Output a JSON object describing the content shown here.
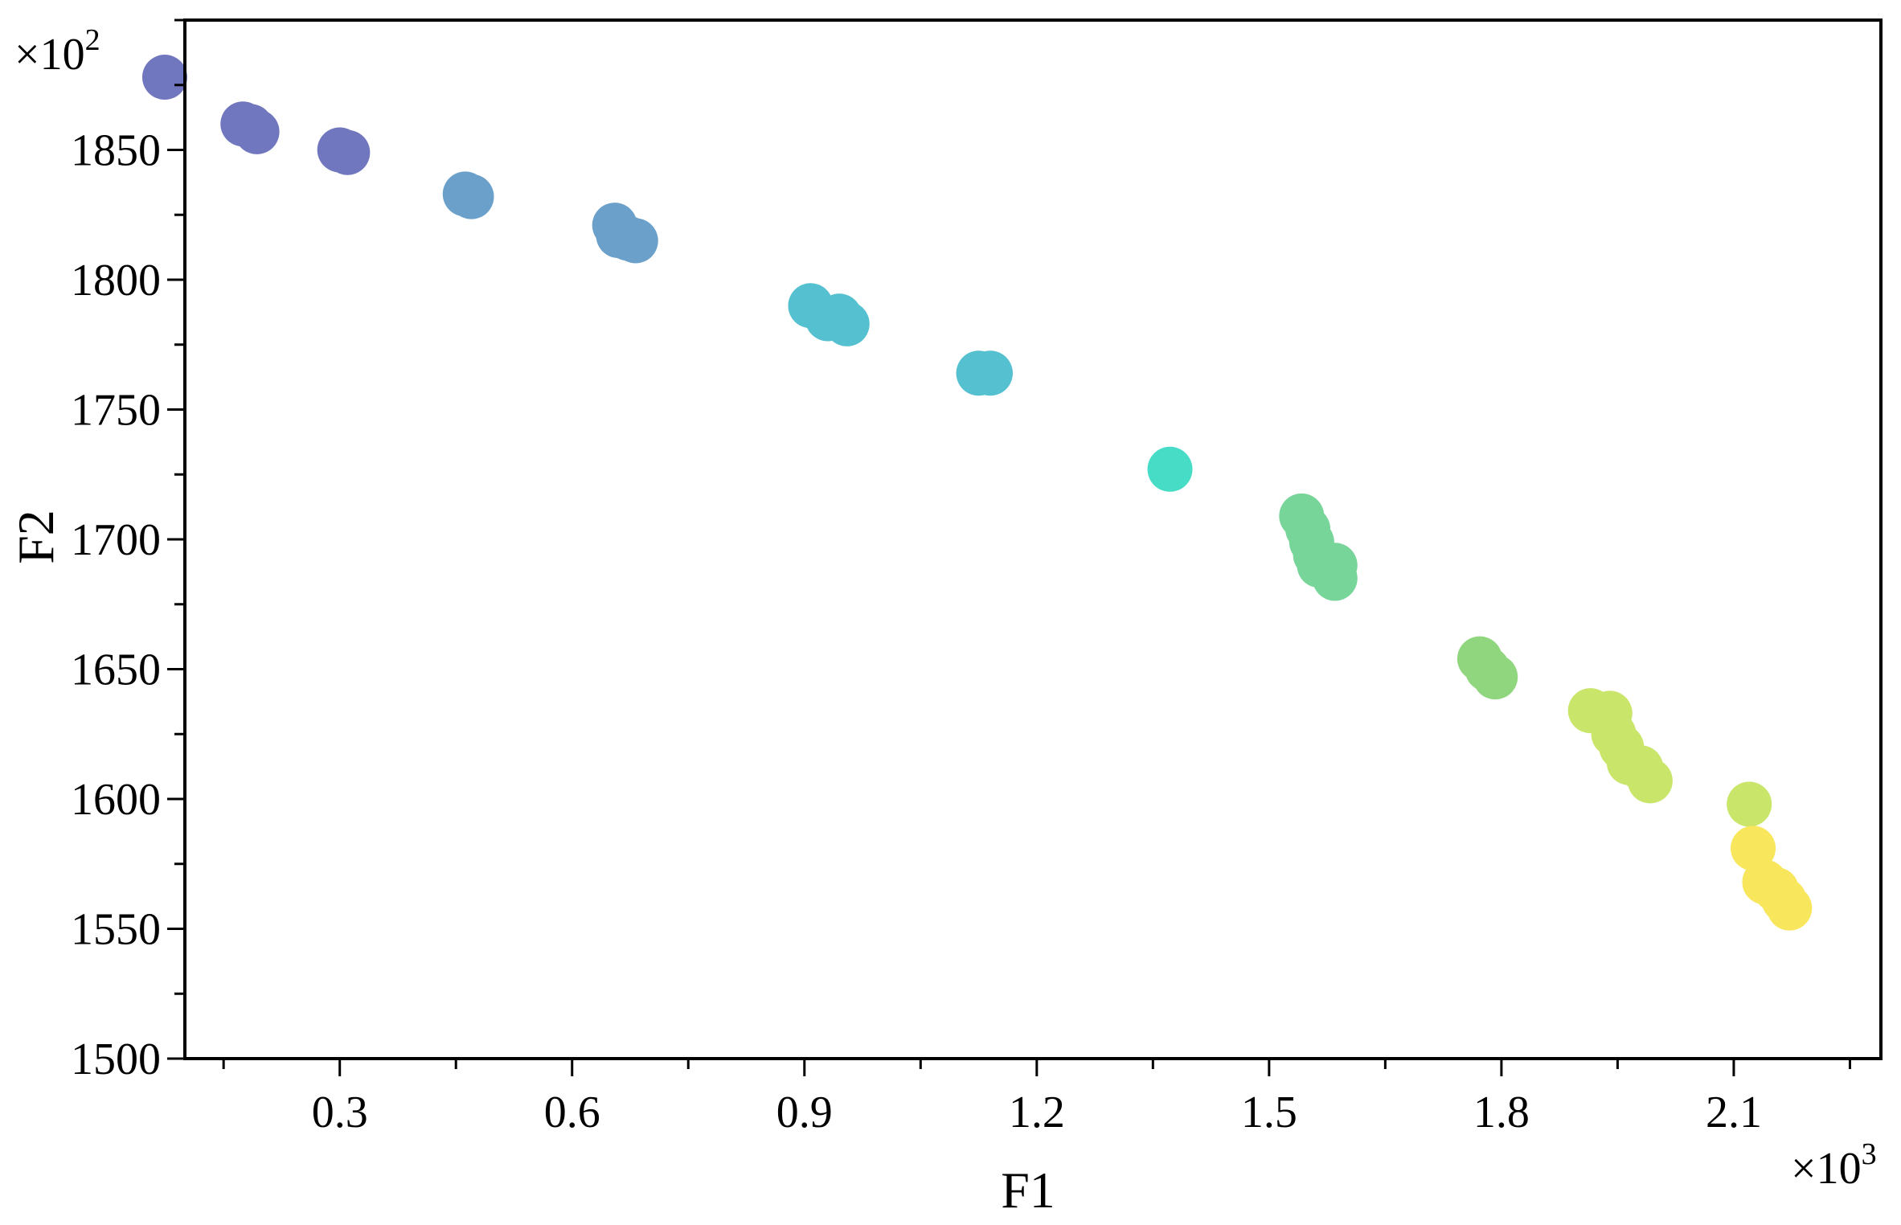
{
  "chart_data": {
    "type": "scatter",
    "xlabel": "F1",
    "ylabel": "F2",
    "x_multiplier_base": "×10",
    "x_multiplier_exp": "3",
    "y_multiplier_base": "×10",
    "y_multiplier_exp": "2",
    "xlim": [
      0.1,
      2.29
    ],
    "ylim": [
      1500,
      1900
    ],
    "xticks": [
      0.3,
      0.6,
      0.9,
      1.2,
      1.5,
      1.8,
      2.1
    ],
    "xtick_labels": [
      "0.3",
      "0.6",
      "0.9",
      "1.2",
      "1.5",
      "1.8",
      "2.1"
    ],
    "yticks": [
      1500,
      1550,
      1600,
      1650,
      1700,
      1750,
      1800,
      1850
    ],
    "ytick_labels": [
      "1500",
      "1550",
      "1600",
      "1650",
      "1700",
      "1750",
      "1800",
      "1850"
    ],
    "grid": false,
    "color_scale": [
      "#7077bf",
      "#6aa0c9",
      "#55c1d0",
      "#47dcc6",
      "#78d59a",
      "#8fd67e",
      "#c9e56a",
      "#f8e65c"
    ],
    "points": [
      {
        "x": 0.074,
        "y": 1878,
        "color": "#7077bf"
      },
      {
        "x": 0.175,
        "y": 1860,
        "color": "#7077bf"
      },
      {
        "x": 0.185,
        "y": 1859,
        "color": "#7077bf"
      },
      {
        "x": 0.193,
        "y": 1857,
        "color": "#7077bf"
      },
      {
        "x": 0.3,
        "y": 1850,
        "color": "#7077bf"
      },
      {
        "x": 0.31,
        "y": 1849,
        "color": "#7077bf"
      },
      {
        "x": 0.462,
        "y": 1833,
        "color": "#6aa0c9"
      },
      {
        "x": 0.47,
        "y": 1832,
        "color": "#6aa0c9"
      },
      {
        "x": 0.655,
        "y": 1821,
        "color": "#6aa0c9"
      },
      {
        "x": 0.66,
        "y": 1817,
        "color": "#6aa0c9"
      },
      {
        "x": 0.672,
        "y": 1816,
        "color": "#6aa0c9"
      },
      {
        "x": 0.682,
        "y": 1815,
        "color": "#6aa0c9"
      },
      {
        "x": 0.908,
        "y": 1790,
        "color": "#55c1d0"
      },
      {
        "x": 0.93,
        "y": 1785,
        "color": "#55c1d0"
      },
      {
        "x": 0.945,
        "y": 1786,
        "color": "#55c1d0"
      },
      {
        "x": 0.955,
        "y": 1783,
        "color": "#55c1d0"
      },
      {
        "x": 1.125,
        "y": 1764,
        "color": "#55c1d0"
      },
      {
        "x": 1.14,
        "y": 1764,
        "color": "#55c1d0"
      },
      {
        "x": 1.372,
        "y": 1727,
        "color": "#47dcc6"
      },
      {
        "x": 1.542,
        "y": 1709,
        "color": "#78d59a"
      },
      {
        "x": 1.55,
        "y": 1704,
        "color": "#78d59a"
      },
      {
        "x": 1.555,
        "y": 1699,
        "color": "#78d59a"
      },
      {
        "x": 1.56,
        "y": 1694,
        "color": "#78d59a"
      },
      {
        "x": 1.565,
        "y": 1690,
        "color": "#78d59a"
      },
      {
        "x": 1.585,
        "y": 1690,
        "color": "#78d59a"
      },
      {
        "x": 1.585,
        "y": 1685,
        "color": "#78d59a"
      },
      {
        "x": 1.772,
        "y": 1654,
        "color": "#8fd67e"
      },
      {
        "x": 1.782,
        "y": 1650,
        "color": "#8fd67e"
      },
      {
        "x": 1.792,
        "y": 1647,
        "color": "#8fd67e"
      },
      {
        "x": 1.915,
        "y": 1634,
        "color": "#c9e56a"
      },
      {
        "x": 1.94,
        "y": 1633,
        "color": "#c9e56a"
      },
      {
        "x": 1.945,
        "y": 1625,
        "color": "#c9e56a"
      },
      {
        "x": 1.955,
        "y": 1620,
        "color": "#c9e56a"
      },
      {
        "x": 1.965,
        "y": 1614,
        "color": "#c9e56a"
      },
      {
        "x": 1.98,
        "y": 1612,
        "color": "#c9e56a"
      },
      {
        "x": 1.992,
        "y": 1607,
        "color": "#c9e56a"
      },
      {
        "x": 2.12,
        "y": 1598,
        "color": "#c9e56a"
      },
      {
        "x": 2.125,
        "y": 1581,
        "color": "#f8e65c"
      },
      {
        "x": 2.14,
        "y": 1568,
        "color": "#f8e65c"
      },
      {
        "x": 2.155,
        "y": 1565,
        "color": "#f8e65c"
      },
      {
        "x": 2.165,
        "y": 1561,
        "color": "#f8e65c"
      },
      {
        "x": 2.172,
        "y": 1558,
        "color": "#f8e65c"
      }
    ]
  }
}
